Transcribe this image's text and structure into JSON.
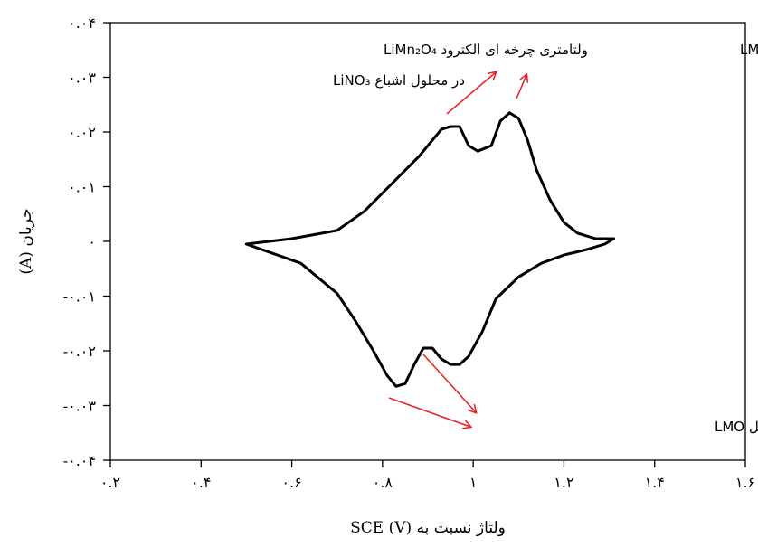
{
  "chart_data": {
    "type": "line",
    "title": "",
    "xlabel": "ولتاژ نسبت به  SCE  (V)",
    "ylabel": "جریان (A)",
    "xlim": [
      0.2,
      1.6
    ],
    "ylim": [
      -0.04,
      0.04
    ],
    "x_ticks": [
      0.2,
      0.4,
      0.6,
      0.8,
      1.0,
      1.2,
      1.4,
      1.6
    ],
    "x_tick_labels": [
      "۰.۲",
      "۰.۴",
      "۰.۶",
      "۰.۸",
      "۱",
      "۱.۲",
      "۱.۴",
      "۱.۶"
    ],
    "y_ticks": [
      0.04,
      0.03,
      0.02,
      0.01,
      0,
      -0.01,
      -0.02,
      -0.03,
      -0.04
    ],
    "y_tick_labels": [
      "۰.۰۴",
      "۰.۰۳",
      "۰.۰۲",
      "۰.۰۱",
      "۰",
      "-۰.۰۱",
      "-۰.۰۲",
      "-۰.۰۳",
      "-۰.۰۴"
    ],
    "grid": false,
    "series": [
      {
        "color": "#000000",
        "x": [
          0.5,
          0.6,
          0.7,
          0.76,
          0.82,
          0.88,
          0.93,
          0.95,
          0.97,
          0.99,
          1.01,
          1.04,
          1.06,
          1.08,
          1.1,
          1.12,
          1.14,
          1.17,
          1.2,
          1.23,
          1.27,
          1.31,
          1.29,
          1.25,
          1.2,
          1.15,
          1.1,
          1.05,
          1.02,
          0.99,
          0.97,
          0.95,
          0.93,
          0.91,
          0.89,
          0.87,
          0.85,
          0.83,
          0.81,
          0.78,
          0.74,
          0.7,
          0.62,
          0.5
        ],
        "y": [
          -0.0005,
          0.0005,
          0.002,
          0.0055,
          0.0105,
          0.0155,
          0.0205,
          0.021,
          0.021,
          0.0175,
          0.0165,
          0.0175,
          0.022,
          0.0235,
          0.0225,
          0.0185,
          0.013,
          0.0075,
          0.0035,
          0.0015,
          0.0005,
          0.0005,
          -0.0005,
          -0.0015,
          -0.0025,
          -0.004,
          -0.0065,
          -0.0105,
          -0.0165,
          -0.021,
          -0.0225,
          -0.0225,
          -0.0215,
          -0.0195,
          -0.0195,
          -0.0225,
          -0.026,
          -0.0265,
          -0.0245,
          -0.02,
          -0.0145,
          -0.0095,
          -0.004,
          -0.0005
        ]
      }
    ],
    "annotations": [
      {
        "text": "ولتامتری چرخه ای الکترود  LiMn₂O₄"
      },
      {
        "text": "در محلول اشباع LiNO₃"
      },
      {
        "text": "خروج لیتیوم از اسپینل  LMO"
      },
      {
        "text": "ورود لیتیوم به اسپینل LMO"
      }
    ],
    "arrow_color": "#e8262a"
  }
}
